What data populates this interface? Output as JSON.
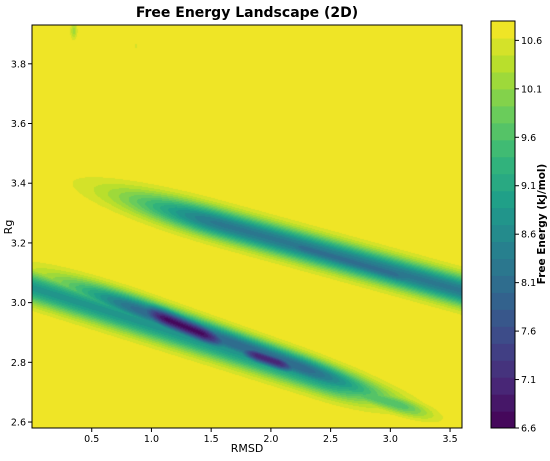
{
  "chart_data": {
    "type": "heatmap",
    "subtype": "filled-contour",
    "title": "Free Energy Landscape (2D)",
    "xlabel": "RMSD",
    "ylabel": "Rg",
    "xlim": [
      0.0,
      3.6
    ],
    "ylim": [
      2.58,
      3.93
    ],
    "x_ticks": [
      {
        "value": 0.5,
        "label": "0.5"
      },
      {
        "value": 1.0,
        "label": "1.0"
      },
      {
        "value": 1.5,
        "label": "1.5"
      },
      {
        "value": 2.0,
        "label": "2.0"
      },
      {
        "value": 2.5,
        "label": "2.5"
      },
      {
        "value": 3.0,
        "label": "3.0"
      },
      {
        "value": 3.5,
        "label": "3.5"
      }
    ],
    "y_ticks": [
      {
        "value": 2.6,
        "label": "2.6"
      },
      {
        "value": 2.8,
        "label": "2.8"
      },
      {
        "value": 3.0,
        "label": "3.0"
      },
      {
        "value": 3.2,
        "label": "3.2"
      },
      {
        "value": 3.4,
        "label": "3.4"
      },
      {
        "value": 3.6,
        "label": "3.6"
      },
      {
        "value": 3.8,
        "label": "3.8"
      }
    ],
    "colorbar": {
      "label": "Free Energy (kJ/mol)",
      "colormap": "viridis",
      "range": [
        6.6,
        10.8
      ],
      "levels": 24,
      "tick_values": [
        6.6,
        7.1,
        7.6,
        8.1,
        8.6,
        9.1,
        9.6,
        10.1,
        10.6
      ],
      "tick_labels": [
        "6.6",
        "7.1",
        "7.6",
        "8.1",
        "8.6",
        "9.1",
        "9.6",
        "10.1",
        "10.6"
      ]
    },
    "background_value": 10.8,
    "wells": [
      {
        "x0": 0.35,
        "y0": 3.91,
        "x1": 0.35,
        "y1": 3.91,
        "sigma_along": 0.1,
        "sigma_perp": 0.02,
        "min": 10.2
      },
      {
        "x0": 0.87,
        "y0": 3.86,
        "x1": 0.87,
        "y1": 3.86,
        "sigma_along": 0.04,
        "sigma_perp": 0.01,
        "min": 10.55
      },
      {
        "x0": 0.0,
        "y0": 3.05,
        "x1": 2.4,
        "y1": 2.75,
        "sigma_along": 0.35,
        "sigma_perp": 0.035,
        "min": 8.8
      },
      {
        "x0": 1.15,
        "y0": 2.94,
        "x1": 1.4,
        "y1": 2.9,
        "sigma_along": 0.22,
        "sigma_perp": 0.025,
        "min": 6.7
      },
      {
        "x0": 1.9,
        "y0": 2.82,
        "x1": 2.05,
        "y1": 2.8,
        "sigma_along": 0.15,
        "sigma_perp": 0.02,
        "min": 7.0
      },
      {
        "x0": 1.0,
        "y0": 2.96,
        "x1": 2.2,
        "y1": 2.79,
        "sigma_along": 0.5,
        "sigma_perp": 0.03,
        "min": 8.0
      },
      {
        "x0": 2.55,
        "y0": 2.72,
        "x1": 3.05,
        "y1": 2.66,
        "sigma_along": 0.2,
        "sigma_perp": 0.02,
        "min": 9.6
      },
      {
        "x0": 1.6,
        "y0": 3.26,
        "x1": 3.6,
        "y1": 3.04,
        "sigma_along": 0.55,
        "sigma_perp": 0.035,
        "min": 8.3
      },
      {
        "x0": 2.3,
        "y0": 3.18,
        "x1": 3.0,
        "y1": 3.1,
        "sigma_along": 0.3,
        "sigma_perp": 0.025,
        "min": 8.1
      }
    ],
    "grid": false,
    "legend": "none"
  }
}
